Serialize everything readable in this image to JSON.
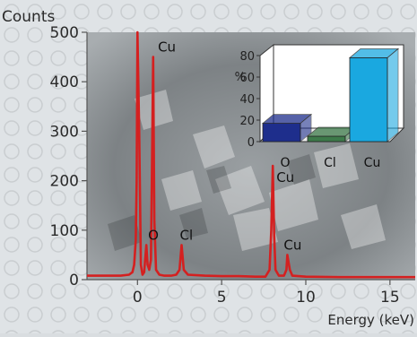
{
  "chart_data": [
    {
      "type": "line",
      "xlabel": "Energy (keV)",
      "ylabel": "Counts",
      "xlim": [
        -3,
        16.5
      ],
      "ylim": [
        0,
        500
      ],
      "x_ticks": [
        0,
        5,
        10,
        15
      ],
      "y_ticks": [
        0,
        100,
        200,
        300,
        400,
        500
      ],
      "grid": false,
      "series": [
        {
          "color": "#d42020",
          "x": [
            -3,
            -1,
            -0.5,
            -0.3,
            -0.2,
            -0.1,
            -0.05,
            0.0,
            0.1,
            0.2,
            0.3,
            0.4,
            0.45,
            0.525,
            0.6,
            0.7,
            0.8,
            0.85,
            0.93,
            1.0,
            1.1,
            1.3,
            1.6,
            2.0,
            2.3,
            2.5,
            2.62,
            2.75,
            3.0,
            4.0,
            5.0,
            6.0,
            7.0,
            7.6,
            7.85,
            7.95,
            8.04,
            8.12,
            8.2,
            8.4,
            8.7,
            8.85,
            8.9,
            9.05,
            9.2,
            10.0,
            12.0,
            14.0,
            16.5
          ],
          "values": [
            8,
            8,
            10,
            15,
            30,
            80,
            200,
            500,
            300,
            30,
            10,
            15,
            40,
            70,
            30,
            20,
            40,
            200,
            450,
            120,
            20,
            10,
            8,
            8,
            10,
            20,
            70,
            20,
            10,
            8,
            7,
            7,
            6,
            6,
            20,
            100,
            230,
            90,
            20,
            8,
            8,
            20,
            50,
            20,
            8,
            6,
            5,
            5,
            5
          ]
        }
      ],
      "annotations": [
        {
          "text": "Cu",
          "x": 1.0,
          "y": 450
        },
        {
          "text": "O",
          "x": 0.525,
          "y": 70
        },
        {
          "text": "Cl",
          "x": 2.62,
          "y": 70
        },
        {
          "text": "Cu",
          "x": 8.04,
          "y": 230
        },
        {
          "text": "Cu",
          "x": 8.9,
          "y": 50
        }
      ]
    },
    {
      "type": "bar",
      "ylabel": "%",
      "ylim": [
        0,
        80
      ],
      "y_ticks": [
        0,
        20,
        40,
        60,
        80
      ],
      "categories": [
        "O",
        "Cl",
        "Cu"
      ],
      "values": [
        17,
        5,
        78
      ],
      "colors": [
        "#1e2e8c",
        "#3d7a4a",
        "#1aa8e0"
      ]
    }
  ]
}
